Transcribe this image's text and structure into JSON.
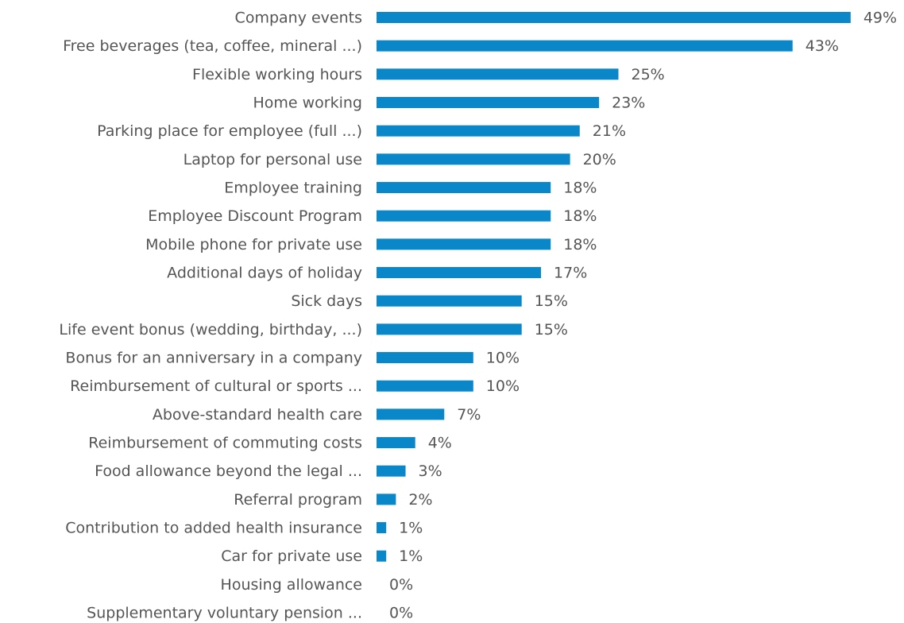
{
  "chart_data": {
    "type": "bar",
    "orientation": "horizontal",
    "color": "#0a87c9",
    "categories": [
      "Company events",
      "Free beverages (tea, coffee, mineral ...)",
      "Flexible working hours",
      "Home working",
      "Parking place for employee (full ...)",
      "Laptop for personal use",
      "Employee training",
      "Employee Discount Program",
      "Mobile phone for private use",
      "Additional days of holiday",
      "Sick days",
      "Life event bonus (wedding, birthday, ...)",
      "Bonus for an anniversary in a company",
      "Reimbursement of cultural or sports ...",
      "Above-standard health care",
      "Reimbursement of commuting costs",
      "Food allowance beyond the legal ...",
      "Referral program",
      "Contribution to added health insurance",
      "Car for private use",
      "Housing allowance",
      "Supplementary voluntary pension ..."
    ],
    "values": [
      49,
      43,
      25,
      23,
      21,
      20,
      18,
      18,
      18,
      17,
      15,
      15,
      10,
      10,
      7,
      4,
      3,
      2,
      1,
      1,
      0,
      0
    ],
    "value_labels": [
      "49%",
      "43%",
      "25%",
      "23%",
      "21%",
      "20%",
      "18%",
      "18%",
      "18%",
      "17%",
      "15%",
      "15%",
      "10%",
      "10%",
      "7%",
      "4%",
      "3%",
      "2%",
      "1%",
      "1%",
      "0%",
      "0%"
    ]
  }
}
